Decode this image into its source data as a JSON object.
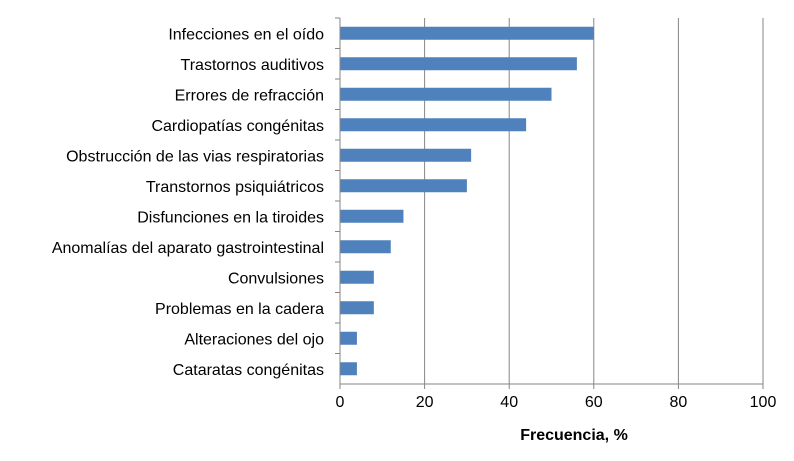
{
  "chart_data": {
    "type": "bar",
    "orientation": "horizontal",
    "categories": [
      "Infecciones en el oído",
      "Trastornos auditivos",
      "Errores de refracción",
      "Cardiopatías congénitas",
      "Obstrucción de las vias respiratorias",
      "Transtornos psiquiátricos",
      "Disfunciones en la tiroides",
      "Anomalías del aparato gastrointestinal",
      "Convulsiones",
      "Problemas en la cadera",
      "Alteraciones del ojo",
      "Cataratas congénitas"
    ],
    "values": [
      60,
      56,
      50,
      44,
      31,
      30,
      15,
      12,
      8,
      8,
      4,
      4
    ],
    "xlabel": "Frecuencia, %",
    "ylabel": "",
    "title": "",
    "xlim": [
      0,
      100
    ],
    "xticks": [
      "0",
      "20",
      "40",
      "60",
      "80",
      "100"
    ],
    "grid": "vertical",
    "bar_color": "#4f81bd",
    "grid_color": "#868686"
  }
}
